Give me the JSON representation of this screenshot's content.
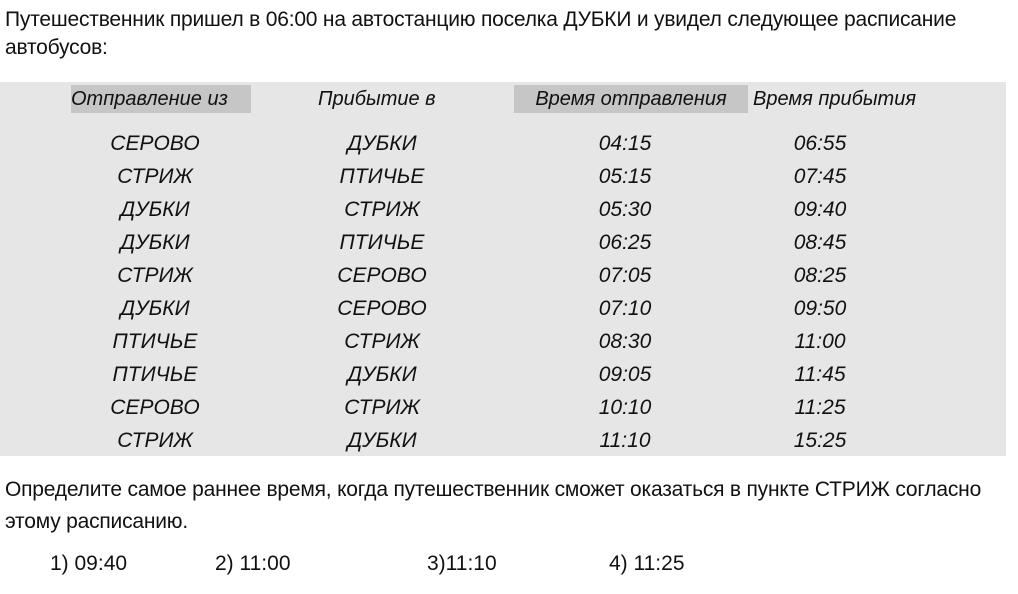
{
  "problem": {
    "intro": "Путешественник пришел в 06:00 на автостанцию поселка ДУБКИ и увидел следующее расписание автобусов:",
    "question": "Определите самое раннее время, когда путешественник сможет оказаться в пункте СТРИЖ согласно этому расписанию."
  },
  "table": {
    "headers": {
      "from": "Отправление из",
      "to": "Прибытие в",
      "departure": "Время отправления",
      "arrival": "Время прибытия"
    },
    "rows": [
      {
        "from": "СЕРОВО",
        "to": "ДУБКИ",
        "departure": "04:15",
        "arrival": "06:55"
      },
      {
        "from": "СТРИЖ",
        "to": "ПТИЧЬЕ",
        "departure": "05:15",
        "arrival": "07:45"
      },
      {
        "from": "ДУБКИ",
        "to": "СТРИЖ",
        "departure": "05:30",
        "arrival": "09:40"
      },
      {
        "from": "ДУБКИ",
        "to": "ПТИЧЬЕ",
        "departure": "06:25",
        "arrival": "08:45"
      },
      {
        "from": "СТРИЖ",
        "to": "СЕРОВО",
        "departure": "07:05",
        "arrival": "08:25"
      },
      {
        "from": "ДУБКИ",
        "to": "СЕРОВО",
        "departure": "07:10",
        "arrival": "09:50"
      },
      {
        "from": "ПТИЧЬЕ",
        "to": "СТРИЖ",
        "departure": "08:30",
        "arrival": "11:00"
      },
      {
        "from": "ПТИЧЬЕ",
        "to": "ДУБКИ",
        "departure": "09:05",
        "arrival": "11:45"
      },
      {
        "from": "СЕРОВО",
        "to": "СТРИЖ",
        "departure": "10:10",
        "arrival": "11:25"
      },
      {
        "from": "СТРИЖ",
        "to": "ДУБКИ",
        "departure": "11:10",
        "arrival": "15:25"
      }
    ]
  },
  "answers": [
    "1) 09:40",
    "2) 11:00",
    "3)11:10",
    "4) 11:25"
  ]
}
